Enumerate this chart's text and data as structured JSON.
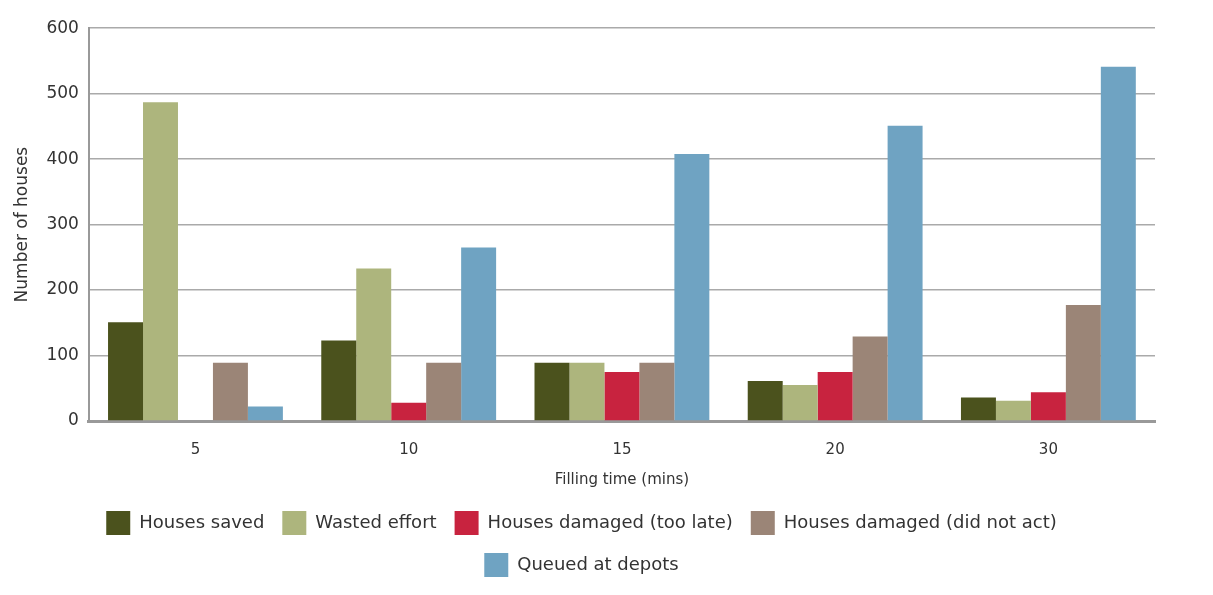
{
  "chart_data": {
    "type": "bar",
    "xlabel": "Filling time (mins)",
    "ylabel": "Number of houses",
    "categories": [
      "5",
      "10",
      "15",
      "20",
      "30"
    ],
    "series": [
      {
        "name": "Houses saved",
        "color": "#4b521d",
        "values": [
          151,
          123,
          89,
          61,
          36
        ]
      },
      {
        "name": "Wasted effort",
        "color": "#adb57d",
        "values": [
          487,
          233,
          89,
          55,
          31
        ]
      },
      {
        "name": "Houses damaged (too late)",
        "color": "#c8233f",
        "values": [
          0,
          28,
          75,
          75,
          44
        ]
      },
      {
        "name": "Houses damaged (did not act)",
        "color": "#9b8577",
        "values": [
          89,
          89,
          89,
          129,
          177
        ]
      },
      {
        "name": "Queued at depots",
        "color": "#6fa3c2",
        "values": [
          22,
          265,
          408,
          451,
          541
        ]
      }
    ],
    "ylim": [
      0,
      600
    ],
    "yticks": [
      0,
      100,
      200,
      300,
      400,
      500,
      600
    ],
    "grid": "y",
    "legend": "bottom"
  }
}
